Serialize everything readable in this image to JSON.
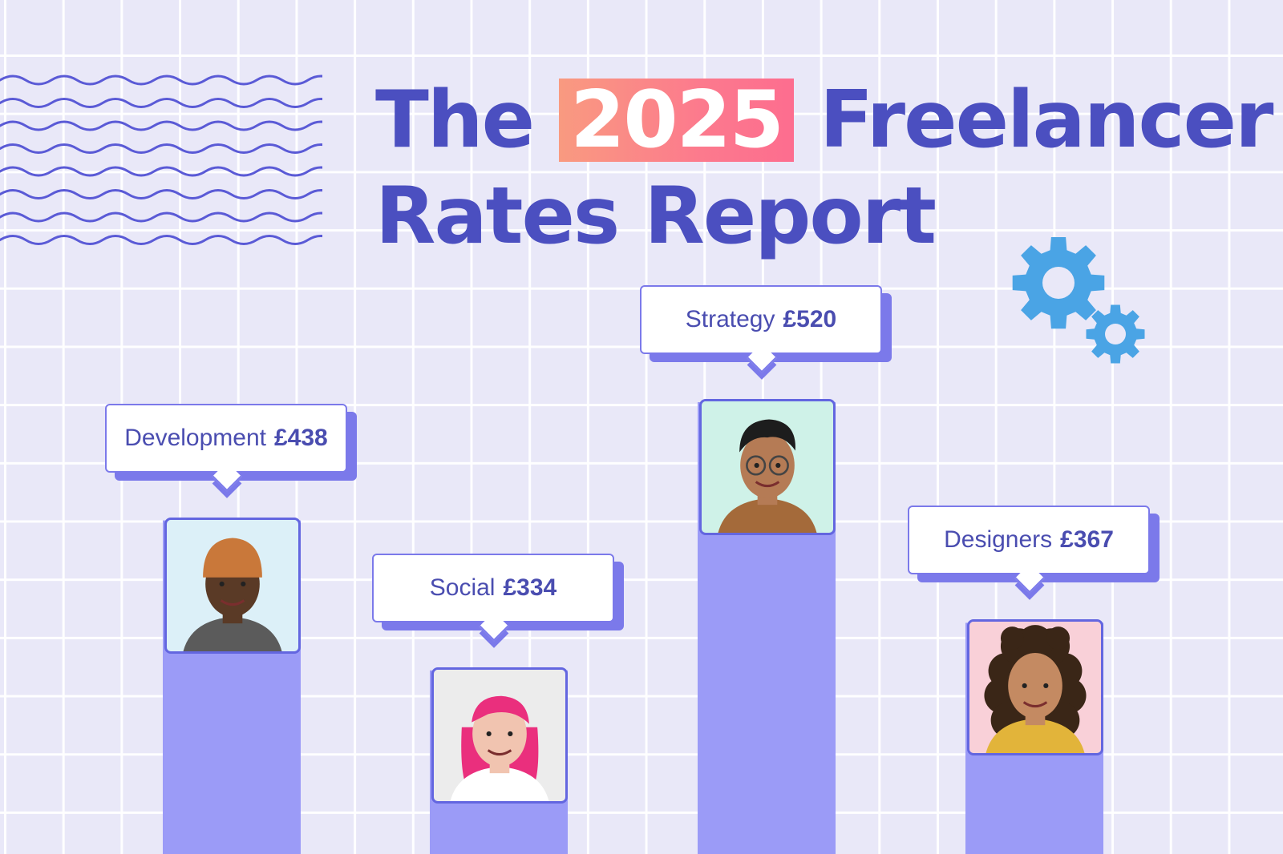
{
  "title": {
    "line1_prefix": "The",
    "highlight": "2025",
    "line1_suffix": "Freelancer",
    "line2": "Rates Report"
  },
  "colors": {
    "background": "#e9e8f8",
    "title": "#4b4fc0",
    "bar": "#9b9bf7",
    "accent_gradient_start": "#f99a80",
    "accent_gradient_end": "#fd6d8f",
    "gear": "#4aa4e5"
  },
  "decorations": {
    "waves": "wavy-lines-icon",
    "gears": "gears-icon"
  },
  "chart_data": {
    "type": "bar",
    "currency": "£",
    "categories": [
      "Development",
      "Social",
      "Strategy",
      "Designers"
    ],
    "values": [
      438,
      334,
      520,
      367
    ],
    "value_labels": [
      "£438",
      "£334",
      "£520",
      "£367"
    ],
    "avatars": [
      "portrait-man-orange-beanie",
      "portrait-woman-pink-hair",
      "portrait-man-glasses",
      "portrait-woman-curly-hair"
    ]
  }
}
